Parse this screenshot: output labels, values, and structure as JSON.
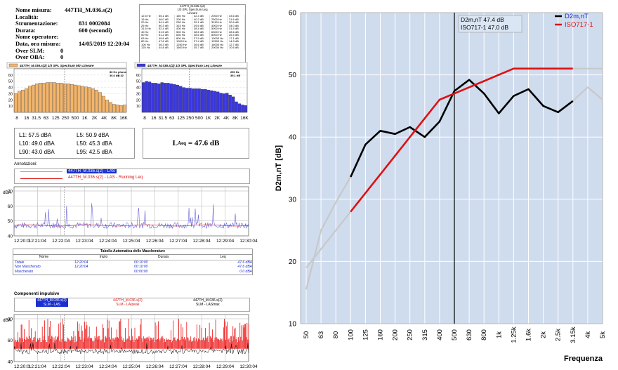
{
  "report": {
    "info": [
      {
        "label": "Nome misura:",
        "value": "447TH_M.036.s(2)"
      },
      {
        "label": "Località:",
        "value": ""
      },
      {
        "label": "Strumentazione:",
        "value": "831  0002084"
      },
      {
        "label": "Durata:",
        "value": "600      (secondi)"
      },
      {
        "label": "Nome operatore:",
        "value": ""
      },
      {
        "label": "Data, ora misura:",
        "value": "14/05/2019     12:20:04"
      },
      {
        "label": "Over SLM:",
        "value": "0"
      },
      {
        "label": "Over OBA:",
        "value": "0"
      }
    ],
    "mini_table": {
      "title1": "447TH_M.036.s(2)",
      "title2": "1/3 SPL Spectrum Leq",
      "title3": "Lineare",
      "rows": [
        [
          "12.5 Hz",
          "55.1 dB",
          "160 Hz",
          "42.4 dB",
          "2000 Hz",
          "33.6 dB"
        ],
        [
          "16 Hz",
          "48.0 dB",
          "200 Hz",
          "40.2 dB",
          "2500 Hz",
          "31.6 dB"
        ],
        [
          "20 Hz",
          "54.4 dB",
          "250 Hz",
          "39.1 dB",
          "3150 Hz",
          "30.6 dB"
        ],
        [
          "25 Hz",
          "50.3 dB",
          "315 Hz",
          "39.6 dB",
          "4000 Hz",
          "34.0 dB"
        ],
        [
          "31.5 Hz",
          "52.4 dB",
          "400 Hz",
          "38.4 dB",
          "5000 Hz",
          "31.5 dB"
        ],
        [
          "40 Hz",
          "51.5 dB",
          "500 Hz",
          "38.5 dB",
          "6300 Hz",
          "28.6 dB"
        ],
        [
          "50 Hz",
          "51.2 dB",
          "630 Hz",
          "38.6 dB",
          "8000 Hz",
          "25.4 dB"
        ],
        [
          "63 Hz",
          "49.6 dB",
          "800 Hz",
          "37.9 dB",
          "10000 Hz",
          "17.1 dB"
        ],
        [
          "80 Hz",
          "47.6 dB",
          "1000 Hz",
          "37.4 dB",
          "12500 Hz",
          "14.3 dB"
        ],
        [
          "100 Hz",
          "46.3 dB",
          "1250 Hz",
          "36.6 dB",
          "16000 Hz",
          "12.7 dB"
        ],
        [
          "125 Hz",
          "44.8 dB",
          "1600 Hz",
          "35.7 dB",
          "20000 Hz",
          "10.6 dB"
        ]
      ]
    },
    "spec_min": {
      "header": "447TH_M.036.s(2) 1/3 SPL Spectrum Min Lineare",
      "note1": "80 Hz",
      "note2": "36.6 dB",
      "note3": "phons",
      "note4": "= 32",
      "yticks": [
        "60",
        "50",
        "40",
        "30",
        "20",
        "10"
      ],
      "xticks": [
        "8",
        "16",
        "31.5",
        "63",
        "125",
        "250",
        "500",
        "1K",
        "2K",
        "4K",
        "8K",
        "16K"
      ],
      "values": [
        30,
        34,
        36,
        38,
        42,
        44,
        46,
        47,
        47,
        48,
        48,
        48,
        47,
        47,
        46,
        46,
        45,
        44,
        43,
        42,
        41,
        40,
        38,
        36,
        32,
        26,
        20,
        16,
        13,
        12,
        11,
        12
      ]
    },
    "spec_leq": {
      "header": "447TH_M.036.s(2) 1/3 SPL Spectrum Leq Lineare",
      "note1": "250 Hz",
      "note2": "39.1 dB",
      "yticks": [
        "60",
        "50",
        "40",
        "30",
        "20",
        "10"
      ],
      "xticks": [
        "8",
        "16",
        "31.5",
        "63",
        "125",
        "250",
        "500",
        "1K",
        "2K",
        "4K",
        "8K",
        "16K"
      ],
      "values": [
        48,
        50,
        49,
        47,
        47,
        46,
        48,
        47,
        47,
        46,
        45,
        44,
        42,
        40,
        39,
        39,
        38,
        38,
        38,
        37,
        37,
        36,
        35,
        34,
        33,
        31,
        30,
        31,
        28,
        25,
        17,
        14,
        12,
        11
      ]
    },
    "stats": {
      "l1": "L1: 57.5 dBA",
      "l5": "L5: 50.9 dBA",
      "l10": "L10: 49.0 dBA",
      "l50": "L50: 45.3 dBA",
      "l90": "L90: 43.0 dBA",
      "l95": "L95: 42.5 dBA",
      "leq_main": "L",
      "leq_sub": "Aeq",
      "leq_value": "= 47.6 dB"
    },
    "annotazioni": "Annotazioni:",
    "legend1_a": "447TH_M.036.s(2) - LAS",
    "legend1_b": "447TH_M.036.s(2) - LAS - Running Leq",
    "time1": {
      "yunit": "dBA",
      "yticks": [
        "70",
        "60",
        "50",
        "40"
      ],
      "xticks": [
        "12:20:0",
        "12:21:04",
        "12:22:04",
        "12:23:04",
        "12:24:04",
        "12:25:04",
        "12:26:04",
        "12:27:04",
        "12:28:04",
        "12:29:04",
        "12:30:04"
      ]
    },
    "mask_table": {
      "title": "Tabella Automatica delle Mascherature",
      "headers": [
        "Nome",
        "Inizio",
        "Durata",
        "Leq"
      ],
      "rows": [
        [
          "Totale",
          "12:20:04",
          "00:10:00",
          "47.6 dBA"
        ],
        [
          "Non Mascherato",
          "12:20:04",
          "00:10:00",
          "47.6 dBA"
        ],
        [
          "Mascherato",
          "",
          "00:00:00",
          "0.0 dBA"
        ]
      ]
    },
    "comp_title": "Componenti impulsive",
    "comp_legend": [
      {
        "line1": "447TH_M.036.s(2)",
        "line2": "SLM - LAS"
      },
      {
        "line1": "447TH_M.036.s(2)",
        "line2": "SLM - LAIpeak"
      },
      {
        "line1": "447TH_M.036.s(2)",
        "line2": "SLM - LASmax"
      }
    ],
    "time2": {
      "yunit": "dBA",
      "yticks": [
        "80",
        "60",
        "40"
      ],
      "xticks": [
        "12:20:0",
        "12:21:04",
        "12:22:04",
        "12:23:04",
        "12:24:04",
        "12:25:04",
        "12:26:04",
        "12:27:04",
        "12:28:04",
        "12:29:04",
        "12:30:04"
      ]
    }
  },
  "colors": {
    "orange": "#f4b56a",
    "blue": "#3a36e0",
    "red": "#dd1111",
    "black": "#000000",
    "gray": "#c0c0c0",
    "bg": "#cfdcee"
  },
  "chart_data": {
    "type": "line",
    "xlabel": "Frequenza",
    "ylabel": "D2m,nT [dB]",
    "ylim": [
      10,
      60
    ],
    "categories": [
      "50",
      "63",
      "80",
      "100",
      "125",
      "160",
      "200",
      "250",
      "315",
      "400",
      "500",
      "630",
      "800",
      "1k",
      "1.25k",
      "1.6k",
      "2k",
      "2.5k",
      "3.15k",
      "4k",
      "5k"
    ],
    "yticks": [
      10,
      20,
      30,
      40,
      50,
      60
    ],
    "grid": true,
    "legend_position": "top-right",
    "marker_at": "500",
    "series": [
      {
        "name": "D2m,nT",
        "color": "#000000",
        "values": [
          15.5,
          25,
          29.5,
          33.6,
          38.8,
          41,
          40.5,
          41.6,
          40,
          42.5,
          47.4,
          49.2,
          47,
          43.8,
          46.6,
          47.7,
          45,
          44,
          45.8,
          48,
          46
        ]
      },
      {
        "name": "ISO717-1",
        "color": "#dd1111",
        "values": [
          19,
          22,
          25,
          28,
          31,
          34,
          37,
          40,
          43,
          46,
          47,
          48,
          49,
          50,
          51,
          51,
          51,
          51,
          51,
          51,
          51
        ]
      }
    ],
    "bold_range": [
      3,
      18
    ],
    "readout": {
      "line1": "D2m,nT   47.4 dB",
      "line2": "ISO717-1  47.0 dB"
    }
  }
}
